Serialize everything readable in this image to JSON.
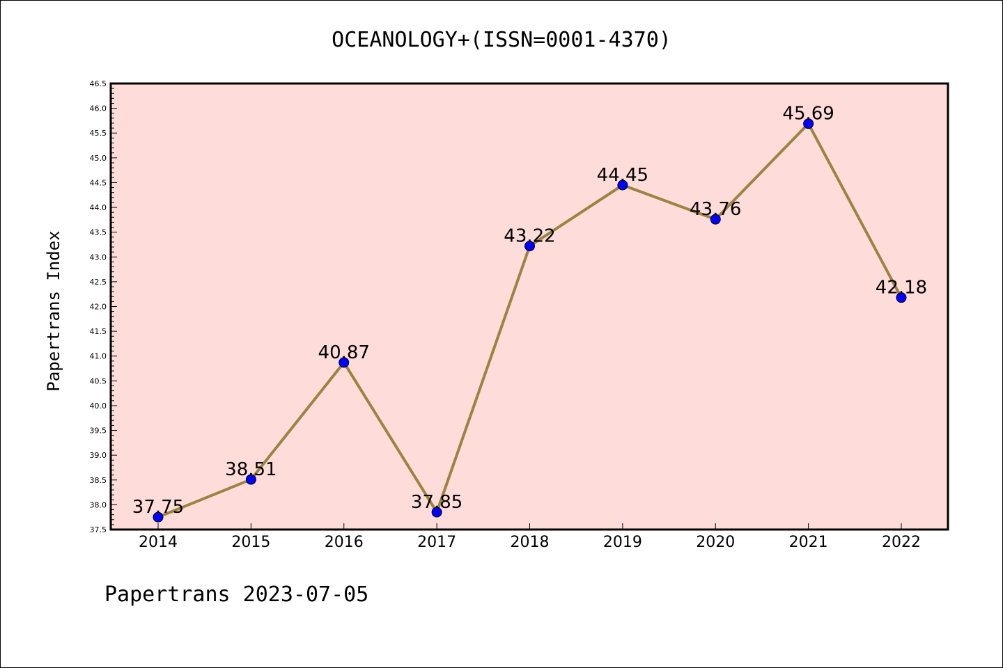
{
  "chart_data": {
    "type": "line",
    "title": "OCEANOLOGY+(ISSN=0001-4370)",
    "ylabel": "Papertrans Index",
    "xlabel": "",
    "categories": [
      "2014",
      "2015",
      "2016",
      "2017",
      "2018",
      "2019",
      "2020",
      "2021",
      "2022"
    ],
    "values": [
      37.75,
      38.51,
      40.87,
      37.85,
      43.22,
      44.45,
      43.76,
      45.69,
      42.18
    ],
    "data_labels": [
      "37.75",
      "38.51",
      "40.87",
      "37.85",
      "43.22",
      "44.45",
      "43.76",
      "45.69",
      "42.18"
    ],
    "ylim": [
      37.5,
      46.5
    ],
    "yticks": [
      "37.5",
      "38.0",
      "38.5",
      "39.0",
      "39.5",
      "40.0",
      "40.5",
      "41.0",
      "41.5",
      "42.0",
      "42.5",
      "43.0",
      "43.5",
      "44.0",
      "44.5",
      "45.0",
      "45.5",
      "46.0",
      "46.5"
    ],
    "grid": false,
    "colors": {
      "plot_background": "#fddcda",
      "line": "#9b8340",
      "marker": "#0000ff"
    }
  },
  "footer": "Papertrans 2023-07-05"
}
